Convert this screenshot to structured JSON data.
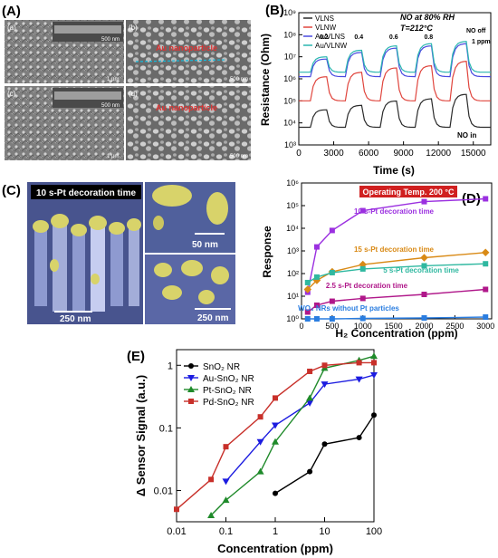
{
  "panel_labels": {
    "A": "(A)",
    "B": "(B)",
    "C": "(C)",
    "D": "(D)",
    "E": "(E)"
  },
  "panel_A": {
    "sub_labels": [
      "(a)",
      "(b)",
      "(c)",
      "(d)"
    ],
    "scale_bars": {
      "a_inset": "500 nm",
      "a_main": "1 µm",
      "b": "500 nm",
      "c_inset": "500 nm",
      "c_main": "1 µm",
      "d": "500 nm"
    },
    "annotation": "Au nanoparticle"
  },
  "panel_C": {
    "caption": "10 s-Pt decoration time",
    "scale_bars": {
      "main": "250 nm",
      "top_right": "50 nm",
      "bottom_right": "250 nm"
    }
  },
  "colors": {
    "panelA_bg": "#8a8a8a",
    "panelC_bg": "#4c5a9c",
    "pt_particles": "#d8d36a"
  },
  "chart_data": [
    {
      "id": "B",
      "type": "line",
      "xlabel": "Time (s)",
      "ylabel": "Resistance (Ohm)",
      "x_ticks": [
        "0",
        "3000",
        "6000",
        "9000",
        "12000",
        "15000"
      ],
      "y_ticks": [
        "10³",
        "10⁴",
        "10⁵",
        "10⁶",
        "10⁷",
        "10⁸",
        "10⁹"
      ],
      "xlim": [
        0,
        16500
      ],
      "ylim_log10": [
        3,
        9
      ],
      "legend": [
        "VLNS",
        "VLNW",
        "Au/VLNS",
        "Au/VLNW"
      ],
      "notes": [
        "NO at 80% RH",
        "T=212°C"
      ],
      "annotations": {
        "no_off": "NO off",
        "ppm1": "1 ppm",
        "no_in": "NO in",
        "conc": [
          "0.2",
          "0.4",
          "0.6",
          "0.8"
        ]
      },
      "pulses": [
        {
          "on": 1000,
          "off": 2400
        },
        {
          "on": 4000,
          "off": 5400
        },
        {
          "on": 7000,
          "off": 8400
        },
        {
          "on": 10000,
          "off": 11400
        },
        {
          "on": 13000,
          "off": 14400
        }
      ],
      "series": [
        {
          "name": "VLNS",
          "color": "#2b2b2b",
          "base": 3.8,
          "peaks": [
            4.6,
            4.8,
            5.0,
            5.1,
            5.3
          ]
        },
        {
          "name": "VLNW",
          "color": "#e0453d",
          "base": 5.0,
          "peaks": [
            6.1,
            6.3,
            6.5,
            6.6,
            6.8
          ]
        },
        {
          "name": "Au/VLNS",
          "color": "#4a4ae0",
          "base": 6.1,
          "peaks": [
            6.9,
            7.2,
            7.4,
            7.5,
            7.6
          ]
        },
        {
          "name": "Au/VLNW",
          "color": "#2ab6b0",
          "base": 6.3,
          "peaks": [
            7.0,
            7.3,
            7.5,
            7.6,
            7.7
          ]
        }
      ]
    },
    {
      "id": "D",
      "type": "line",
      "xlabel": "H₂ Concentration (ppm)",
      "ylabel": "Response",
      "x_ticks": [
        "0",
        "500",
        "1000",
        "1500",
        "2000",
        "2500",
        "3000"
      ],
      "y_ticks": [
        "10⁰",
        "10¹",
        "10²",
        "10³",
        "10⁴",
        "10⁵",
        "10⁶"
      ],
      "ylim_log10": [
        0,
        6
      ],
      "xlim": [
        0,
        3100
      ],
      "title_box": "Operating Temp. 200 °C",
      "x": [
        100,
        250,
        500,
        1000,
        2000,
        3000
      ],
      "series": [
        {
          "name": "10 s-Pt decoration time",
          "color": "#9b30e0",
          "values": [
            15,
            1500,
            8000,
            60000,
            150000,
            200000
          ]
        },
        {
          "name": "15 s-Pt decoration time",
          "color": "#d98a16",
          "values": [
            20,
            50,
            120,
            250,
            500,
            850
          ]
        },
        {
          "name": "5 s-Pt decoration time",
          "color": "#2fb8a0",
          "values": [
            40,
            70,
            110,
            160,
            220,
            270
          ]
        },
        {
          "name": "2.5 s-Pt decoration time",
          "color": "#b0188a",
          "values": [
            2,
            4,
            6,
            8,
            12,
            20
          ]
        },
        {
          "name": "WO₃ NRs without Pt particles",
          "color": "#2a7de0",
          "values": [
            1,
            1,
            1,
            1.05,
            1.1,
            1.2
          ]
        }
      ]
    },
    {
      "id": "E",
      "type": "line",
      "xlabel": "Concentration (ppm)",
      "ylabel": "Δ Sensor Signal (a.u.)",
      "x_ticks": [
        "0.01",
        "0.1",
        "1",
        "10",
        "100"
      ],
      "y_ticks": [
        "0.01",
        "0.1",
        "1"
      ],
      "xlim_log10": [
        -2,
        2
      ],
      "ylim_log10": [
        -2.5,
        0.25
      ],
      "legend_position": "top-left",
      "series": [
        {
          "name": "SnO₂ NR",
          "color": "#000000",
          "marker": "circle",
          "x": [
            1,
            5,
            10,
            50,
            100
          ],
          "values": [
            0.009,
            0.02,
            0.055,
            0.07,
            0.16
          ]
        },
        {
          "name": "Au-SnO₂ NR",
          "color": "#1c1ce0",
          "marker": "triangle-down",
          "x": [
            0.1,
            0.5,
            1,
            5,
            10,
            50,
            100
          ],
          "values": [
            0.014,
            0.06,
            0.11,
            0.25,
            0.5,
            0.6,
            0.7
          ]
        },
        {
          "name": "Pt-SnO₂ NR",
          "color": "#1f8a2a",
          "marker": "triangle-up",
          "x": [
            0.05,
            0.1,
            0.5,
            1,
            5,
            10,
            50,
            100
          ],
          "values": [
            0.004,
            0.007,
            0.02,
            0.06,
            0.3,
            0.9,
            1.2,
            1.4
          ]
        },
        {
          "name": "Pd-SnO₂ NR",
          "color": "#c8302a",
          "marker": "square",
          "x": [
            0.01,
            0.05,
            0.1,
            0.5,
            1,
            5,
            10,
            50,
            100
          ],
          "values": [
            0.005,
            0.015,
            0.05,
            0.15,
            0.3,
            0.8,
            1.0,
            1.1,
            1.1
          ]
        }
      ]
    }
  ]
}
